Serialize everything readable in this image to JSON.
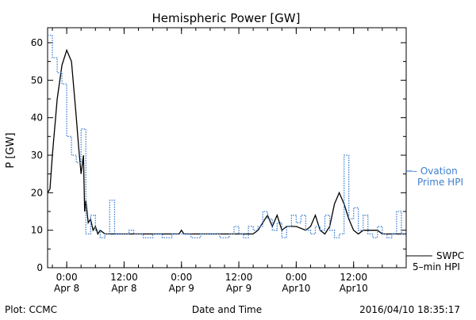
{
  "footer": {
    "left": "Plot: CCMC",
    "center": "Date and Time",
    "right": "2016/04/10 18:35:17"
  },
  "chart_data": {
    "type": "line",
    "title": "Hemispheric Power [GW]",
    "xlabel": "Date and Time",
    "ylabel": "P [GW]",
    "ylim": [
      0,
      64
    ],
    "xlim": [
      "2016-04-07T20:00",
      "2016-04-10T23:00"
    ],
    "y_ticks": [
      0,
      10,
      20,
      30,
      40,
      50,
      60
    ],
    "x_ticks": [
      {
        "time": "2016-04-08T00:00",
        "line1": "0:00",
        "line2": "Apr 8"
      },
      {
        "time": "2016-04-08T12:00",
        "line1": "12:00",
        "line2": "Apr 8"
      },
      {
        "time": "2016-04-09T00:00",
        "line1": "0:00",
        "line2": "Apr 9"
      },
      {
        "time": "2016-04-09T12:00",
        "line1": "12:00",
        "line2": "Apr 9"
      },
      {
        "time": "2016-04-10T00:00",
        "line1": "0:00",
        "line2": "Apr10"
      },
      {
        "time": "2016-04-10T12:00",
        "line1": "12:00",
        "line2": "Apr10"
      }
    ],
    "grid": false,
    "legend_position": "right",
    "series": [
      {
        "name": "SWPC 5-min HPI",
        "legend_line1": "SWPC",
        "legend_line2": "5–min HPI",
        "color": "#000000",
        "style": "solid",
        "x": [
          "2016-04-07T20:00",
          "2016-04-07T20:30",
          "2016-04-07T21:00",
          "2016-04-07T22:00",
          "2016-04-07T23:00",
          "2016-04-08T00:00",
          "2016-04-08T01:00",
          "2016-04-08T02:00",
          "2016-04-08T02:30",
          "2016-04-08T03:00",
          "2016-04-08T03:30",
          "2016-04-08T03:45",
          "2016-04-08T04:00",
          "2016-04-08T04:30",
          "2016-04-08T05:00",
          "2016-04-08T05:30",
          "2016-04-08T06:00",
          "2016-04-08T06:30",
          "2016-04-08T07:00",
          "2016-04-08T08:00",
          "2016-04-08T09:00",
          "2016-04-08T12:00",
          "2016-04-08T18:00",
          "2016-04-08T23:30",
          "2016-04-09T00:00",
          "2016-04-09T00:30",
          "2016-04-09T06:00",
          "2016-04-09T12:00",
          "2016-04-09T15:00",
          "2016-04-09T16:00",
          "2016-04-09T17:00",
          "2016-04-09T18:00",
          "2016-04-09T19:00",
          "2016-04-09T20:00",
          "2016-04-09T21:00",
          "2016-04-09T22:00",
          "2016-04-10T00:00",
          "2016-04-10T02:00",
          "2016-04-10T03:00",
          "2016-04-10T04:00",
          "2016-04-10T05:00",
          "2016-04-10T06:00",
          "2016-04-10T07:00",
          "2016-04-10T08:00",
          "2016-04-10T09:00",
          "2016-04-10T10:00",
          "2016-04-10T11:00",
          "2016-04-10T12:00",
          "2016-04-10T13:00",
          "2016-04-10T14:00",
          "2016-04-10T17:00",
          "2016-04-10T18:00",
          "2016-04-10T19:00",
          "2016-04-10T23:00"
        ],
        "y": [
          20,
          21,
          30,
          45,
          54,
          58,
          55,
          40,
          32,
          25,
          30,
          15,
          18,
          12,
          13,
          10,
          11,
          9,
          10,
          9,
          9,
          9,
          9,
          9,
          10,
          9,
          9,
          9,
          9,
          10,
          12,
          14,
          11,
          14,
          10,
          11,
          11,
          10,
          11,
          14,
          10,
          9,
          11,
          17,
          20,
          17,
          13,
          10,
          9,
          10,
          10,
          9,
          9,
          9
        ]
      },
      {
        "name": "Ovation Prime HPI",
        "legend_line1": "– Ovation",
        "legend_line2": "Prime HPI",
        "color": "#3f7fd0",
        "style": "dotted-step",
        "x": [
          "2016-04-07T20:00",
          "2016-04-07T21:00",
          "2016-04-07T22:00",
          "2016-04-07T23:00",
          "2016-04-08T00:00",
          "2016-04-08T01:00",
          "2016-04-08T02:00",
          "2016-04-08T03:00",
          "2016-04-08T04:00",
          "2016-04-08T05:00",
          "2016-04-08T06:00",
          "2016-04-08T07:00",
          "2016-04-08T08:00",
          "2016-04-08T09:00",
          "2016-04-08T10:00",
          "2016-04-08T11:00",
          "2016-04-08T12:00",
          "2016-04-08T13:00",
          "2016-04-08T14:00",
          "2016-04-08T16:00",
          "2016-04-08T18:00",
          "2016-04-08T20:00",
          "2016-04-08T22:00",
          "2016-04-09T00:00",
          "2016-04-09T02:00",
          "2016-04-09T04:00",
          "2016-04-09T06:00",
          "2016-04-09T08:00",
          "2016-04-09T10:00",
          "2016-04-09T11:00",
          "2016-04-09T12:00",
          "2016-04-09T13:00",
          "2016-04-09T14:00",
          "2016-04-09T15:00",
          "2016-04-09T16:00",
          "2016-04-09T17:00",
          "2016-04-09T18:00",
          "2016-04-09T19:00",
          "2016-04-09T20:00",
          "2016-04-09T21:00",
          "2016-04-09T22:00",
          "2016-04-09T23:00",
          "2016-04-10T00:00",
          "2016-04-10T01:00",
          "2016-04-10T02:00",
          "2016-04-10T03:00",
          "2016-04-10T04:00",
          "2016-04-10T05:00",
          "2016-04-10T06:00",
          "2016-04-10T07:00",
          "2016-04-10T08:00",
          "2016-04-10T09:00",
          "2016-04-10T10:00",
          "2016-04-10T11:00",
          "2016-04-10T12:00",
          "2016-04-10T13:00",
          "2016-04-10T14:00",
          "2016-04-10T15:00",
          "2016-04-10T16:00",
          "2016-04-10T17:00",
          "2016-04-10T18:00",
          "2016-04-10T19:00",
          "2016-04-10T20:00",
          "2016-04-10T21:00",
          "2016-04-10T22:00"
        ],
        "y": [
          62,
          56,
          52,
          49,
          35,
          30,
          28,
          37,
          9,
          14,
          10,
          8,
          9,
          18,
          9,
          9,
          9,
          10,
          9,
          8,
          9,
          8,
          9,
          9,
          8,
          9,
          9,
          8,
          9,
          11,
          9,
          8,
          11,
          10,
          11,
          15,
          13,
          10,
          12,
          8,
          11,
          14,
          12,
          14,
          10,
          9,
          11,
          10,
          14,
          10,
          8,
          9,
          30,
          13,
          16,
          10,
          14,
          9,
          8,
          11,
          9,
          8,
          9,
          15,
          9
        ]
      }
    ]
  }
}
